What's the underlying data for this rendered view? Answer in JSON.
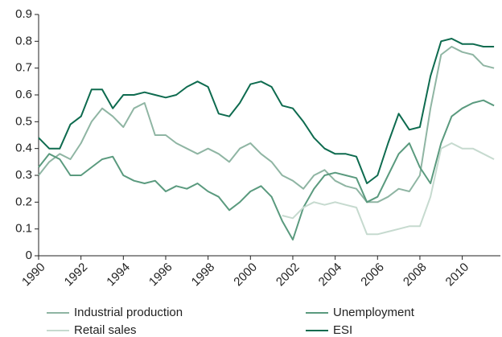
{
  "chart_data": {
    "type": "line",
    "x": [
      1990,
      1990.5,
      1991,
      1991.5,
      1992,
      1992.5,
      1993,
      1993.5,
      1994,
      1994.5,
      1995,
      1995.5,
      1996,
      1996.5,
      1997,
      1997.5,
      1998,
      1998.5,
      1999,
      1999.5,
      2000,
      2000.5,
      2001,
      2001.5,
      2002,
      2002.5,
      2003,
      2003.5,
      2004,
      2004.5,
      2005,
      2005.5,
      2006,
      2006.5,
      2007,
      2007.5,
      2008,
      2008.5,
      2009,
      2009.5,
      2010,
      2010.5,
      2011,
      2011.5
    ],
    "series": [
      {
        "name": "Industrial production",
        "color": "#8fb5a3",
        "values": [
          0.3,
          0.35,
          0.38,
          0.36,
          0.42,
          0.5,
          0.55,
          0.52,
          0.48,
          0.55,
          0.57,
          0.45,
          0.45,
          0.42,
          0.4,
          0.38,
          0.4,
          0.38,
          0.35,
          0.4,
          0.42,
          0.38,
          0.35,
          0.3,
          0.28,
          0.25,
          0.3,
          0.32,
          0.28,
          0.26,
          0.25,
          0.2,
          0.2,
          0.22,
          0.25,
          0.24,
          0.3,
          0.55,
          0.75,
          0.78,
          0.76,
          0.75,
          0.71,
          0.7
        ]
      },
      {
        "name": "Unemployment",
        "color": "#5a9a7e",
        "values": [
          0.33,
          0.38,
          0.36,
          0.3,
          0.3,
          0.33,
          0.36,
          0.37,
          0.3,
          0.28,
          0.27,
          0.28,
          0.24,
          0.26,
          0.25,
          0.27,
          0.24,
          0.22,
          0.17,
          0.2,
          0.24,
          0.26,
          0.22,
          0.13,
          0.06,
          0.18,
          0.25,
          0.3,
          0.31,
          0.3,
          0.29,
          0.2,
          0.22,
          0.3,
          0.38,
          0.42,
          0.33,
          0.27,
          0.42,
          0.52,
          0.55,
          0.57,
          0.58,
          0.56
        ]
      },
      {
        "name": "Retail sales",
        "color": "#c6dacf",
        "values": [
          null,
          null,
          null,
          null,
          null,
          null,
          null,
          null,
          null,
          null,
          null,
          null,
          null,
          null,
          null,
          null,
          null,
          null,
          null,
          null,
          null,
          null,
          null,
          0.15,
          0.14,
          0.18,
          0.2,
          0.19,
          0.2,
          0.19,
          0.18,
          0.08,
          0.08,
          0.09,
          0.1,
          0.11,
          0.11,
          0.22,
          0.4,
          0.42,
          0.4,
          0.4,
          0.38,
          0.36
        ]
      },
      {
        "name": "ESI",
        "color": "#0e6b4f",
        "values": [
          0.44,
          0.4,
          0.4,
          0.49,
          0.52,
          0.62,
          0.62,
          0.55,
          0.6,
          0.6,
          0.61,
          0.6,
          0.59,
          0.6,
          0.63,
          0.65,
          0.63,
          0.53,
          0.52,
          0.57,
          0.64,
          0.65,
          0.63,
          0.56,
          0.55,
          0.5,
          0.44,
          0.4,
          0.38,
          0.38,
          0.37,
          0.27,
          0.3,
          0.42,
          0.53,
          0.47,
          0.48,
          0.67,
          0.8,
          0.81,
          0.79,
          0.79,
          0.78,
          0.78
        ]
      }
    ],
    "xlim": [
      1990,
      2011.8
    ],
    "xticks": [
      1990,
      1992,
      1994,
      1996,
      1998,
      2000,
      2002,
      2004,
      2006,
      2008,
      2010
    ],
    "ylim": [
      0,
      0.9
    ],
    "yticks": [
      0,
      0.1,
      0.2,
      0.3,
      0.4,
      0.5,
      0.6,
      0.7,
      0.8,
      0.9
    ],
    "grid": false
  }
}
